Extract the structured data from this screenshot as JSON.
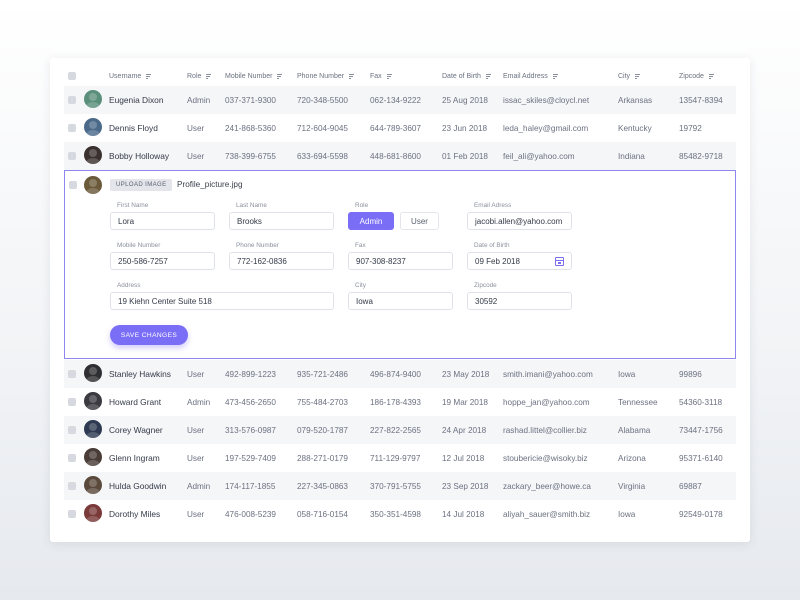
{
  "columns": {
    "username": "Username",
    "role": "Role",
    "mobile": "Mobile Number",
    "phone": "Phone Number",
    "fax": "Fax",
    "dob": "Date of Birth",
    "email": "Email Address",
    "city": "City",
    "zipcode": "Zipcode"
  },
  "rows_top": [
    {
      "name": "Eugenia Dixon",
      "role": "Admin",
      "mobile": "037-371-9300",
      "phone": "720-348-5500",
      "fax": "062-134-9222",
      "dob": "25 Aug 2018",
      "email": "issac_skiles@cloycl.net",
      "city": "Arkansas",
      "zip": "13547-8394",
      "avatar_color": "#5a8f7b"
    },
    {
      "name": "Dennis Floyd",
      "role": "User",
      "mobile": "241-868-5360",
      "phone": "712-604-9045",
      "fax": "644-789-3607",
      "dob": "23 Jun 2018",
      "email": "leda_haley@gmail.com",
      "city": "Kentucky",
      "zip": "19792",
      "avatar_color": "#4b6a8a"
    },
    {
      "name": "Bobby Holloway",
      "role": "User",
      "mobile": "738-399-6755",
      "phone": "633-694-5598",
      "fax": "448-681-8600",
      "dob": "01 Feb 2018",
      "email": "feil_ali@yahoo.com",
      "city": "Indiana",
      "zip": "85482-9718",
      "avatar_color": "#3b3030"
    }
  ],
  "editor": {
    "upload_label": "UPLOAD IMAGE",
    "file_name": "Profile_picture.jpg",
    "avatar_color": "#6a5a3a",
    "first_name_label": "First Name",
    "first_name": "Lora",
    "last_name_label": "Last Name",
    "last_name": "Brooks",
    "role_label": "Role",
    "role_admin": "Admin",
    "role_user": "User",
    "email_label": "Email Adress",
    "email": "jacobi.allen@yahoo.com",
    "mobile_label": "Mobile Number",
    "mobile": "250-586-7257",
    "phone_label": "Phone Number",
    "phone": "772-162-0836",
    "fax_label": "Fax",
    "fax": "907-308-8237",
    "dob_label": "Date of Birth",
    "dob": "09 Feb 2018",
    "address_label": "Address",
    "address": "19 Kiehn Center Suite 518",
    "city_label": "City",
    "city": "Iowa",
    "zip_label": "Zipcode",
    "zip": "30592",
    "save_label": "SAVE CHANGES"
  },
  "rows_bottom": [
    {
      "name": "Stanley Hawkins",
      "role": "User",
      "mobile": "492-899-1223",
      "phone": "935-721-2486",
      "fax": "496-874-9400",
      "dob": "23 May 2018",
      "email": "smith.imani@yahoo.com",
      "city": "Iowa",
      "zip": "99896",
      "avatar_color": "#2f2f33"
    },
    {
      "name": "Howard Grant",
      "role": "Admin",
      "mobile": "473-456-2650",
      "phone": "755-484-2703",
      "fax": "186-178-4393",
      "dob": "19 Mar 2018",
      "email": "hoppe_jan@yahoo.com",
      "city": "Tennessee",
      "zip": "54360-3118",
      "avatar_color": "#3a3a40"
    },
    {
      "name": "Corey Wagner",
      "role": "User",
      "mobile": "313-576-0987",
      "phone": "079-520-1787",
      "fax": "227-822-2565",
      "dob": "24 Apr 2018",
      "email": "rashad.littel@collier.biz",
      "city": "Alabama",
      "zip": "73447-1756",
      "avatar_color": "#2d3a52"
    },
    {
      "name": "Glenn Ingram",
      "role": "User",
      "mobile": "197-529-7409",
      "phone": "288-271-0179",
      "fax": "711-129-9797",
      "dob": "12 Jul 2018",
      "email": "stoubericie@wisoky.biz",
      "city": "Arizona",
      "zip": "95371-6140",
      "avatar_color": "#4a3c36"
    },
    {
      "name": "Hulda Goodwin",
      "role": "Admin",
      "mobile": "174-117-1855",
      "phone": "227-345-0863",
      "fax": "370-791-5755",
      "dob": "23 Sep 2018",
      "email": "zackary_beer@howe.ca",
      "city": "Virginia",
      "zip": "69887",
      "avatar_color": "#5b4a3c"
    },
    {
      "name": "Dorothy Miles",
      "role": "User",
      "mobile": "476-008-5239",
      "phone": "058-716-0154",
      "fax": "350-351-4598",
      "dob": "14 Jul 2018",
      "email": "aliyah_sauer@smith.biz",
      "city": "Iowa",
      "zip": "92549-0178",
      "avatar_color": "#7a3a3a"
    }
  ]
}
